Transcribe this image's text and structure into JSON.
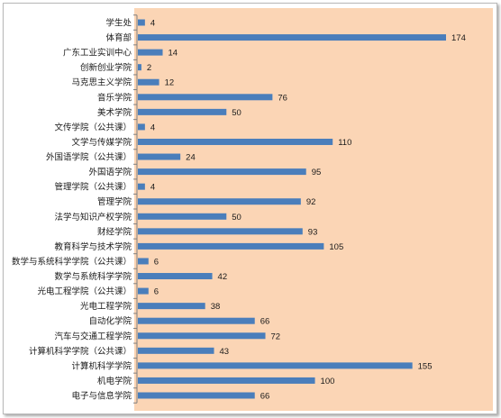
{
  "chart_data": {
    "type": "bar",
    "orientation": "horizontal",
    "categories": [
      "学生处",
      "体育部",
      "广东工业实训中心",
      "创新创业学院",
      "马克思主义学院",
      "音乐学院",
      "美术学院",
      "文传学院（公共课）",
      "文学与传媒学院",
      "外国语学院（公共课）",
      "外国语学院",
      "管理学院（公共课）",
      "管理学院",
      "法学与知识产权学院",
      "财经学院",
      "教育科学与技术学院",
      "数学与系统科学学院（公共课）",
      "数学与系统科学学院",
      "光电工程学院（公共课）",
      "光电工程学院",
      "自动化学院",
      "汽车与交通工程学院",
      "计算机科学学院（公共课）",
      "计算机科学学院",
      "机电学院",
      "电子与信息学院"
    ],
    "values": [
      4,
      174,
      14,
      2,
      12,
      76,
      50,
      4,
      110,
      24,
      95,
      4,
      92,
      50,
      93,
      105,
      6,
      42,
      6,
      38,
      66,
      72,
      43,
      155,
      100,
      66
    ],
    "xlim": [
      0,
      180
    ],
    "grid": false,
    "legend": "none",
    "data_labels": true
  },
  "colors": {
    "bar": "#4a7ebb",
    "plot_background": "#fbd5b5",
    "frame_border": "#b9b9b9"
  }
}
